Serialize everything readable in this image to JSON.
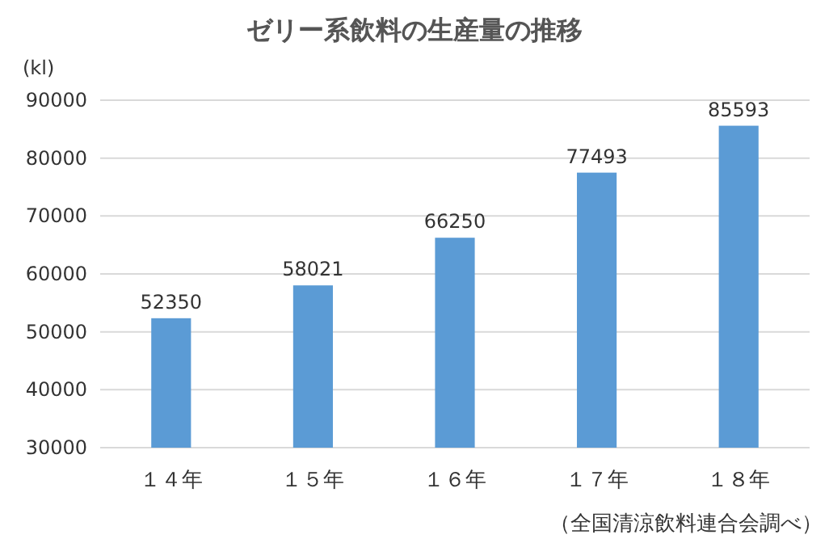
{
  "chart_data": {
    "type": "bar",
    "title": "ゼリー系飲料の生産量の推移",
    "ylabel": "(kl)",
    "categories": [
      "１４年",
      "１５年",
      "１６年",
      "１７年",
      "１８年"
    ],
    "values": [
      52350,
      58021,
      66250,
      77493,
      85593
    ],
    "color": "#5b9bd5",
    "ylim": [
      30000,
      90000
    ],
    "yticks": [
      30000,
      40000,
      50000,
      60000,
      70000,
      80000,
      90000
    ],
    "grid": "y",
    "data_labels": true,
    "annotations": [
      "（全国清涼飲料連合会調べ）"
    ]
  }
}
